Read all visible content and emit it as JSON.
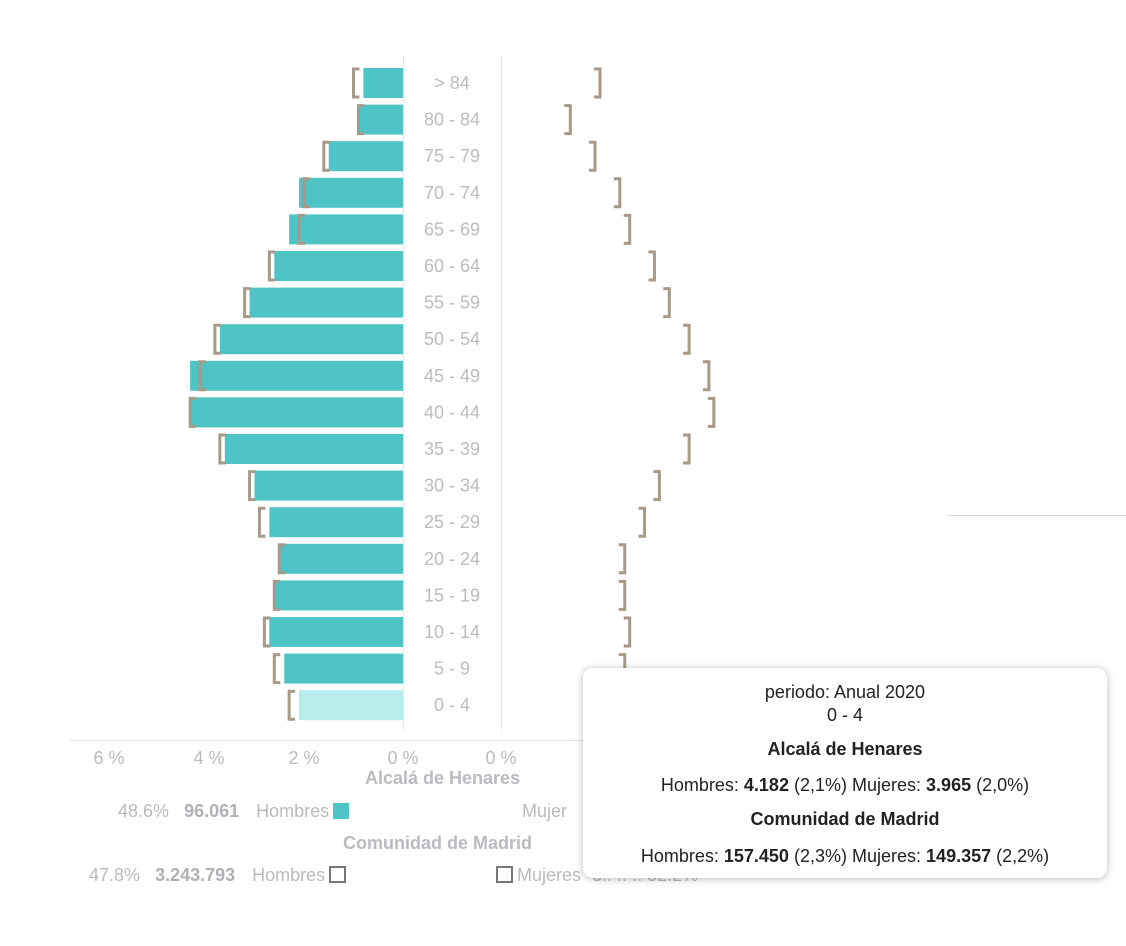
{
  "chart_data": {
    "type": "bar",
    "subtype": "population-pyramid",
    "categories": [
      "> 84",
      "80 - 84",
      "75 - 79",
      "70 - 74",
      "65 - 69",
      "60 - 64",
      "55 - 59",
      "50 - 54",
      "45 - 49",
      "40 - 44",
      "35 - 39",
      "30 - 34",
      "25 - 29",
      "20 - 24",
      "15 - 19",
      "10 - 14",
      "5 - 9",
      "0 - 4"
    ],
    "series": [
      {
        "name": "Alcalá de Henares Hombres",
        "unit": "%",
        "values": [
          0.8,
          0.9,
          1.5,
          2.1,
          2.3,
          2.6,
          3.1,
          3.7,
          4.3,
          4.3,
          3.6,
          3.0,
          2.7,
          2.5,
          2.6,
          2.7,
          2.4,
          2.1
        ]
      },
      {
        "name": "Comunidad de Madrid Hombres",
        "unit": "%",
        "values": [
          1.0,
          0.9,
          1.6,
          2.0,
          2.1,
          2.7,
          3.2,
          3.8,
          4.1,
          4.3,
          3.7,
          3.1,
          2.9,
          2.5,
          2.6,
          2.8,
          2.6,
          2.3
        ]
      },
      {
        "name": "Comunidad de Madrid Mujeres",
        "unit": "%",
        "values": [
          2.0,
          1.4,
          1.9,
          2.4,
          2.6,
          3.1,
          3.4,
          3.8,
          4.2,
          4.3,
          3.8,
          3.2,
          2.9,
          2.5,
          2.5,
          2.6,
          2.5,
          2.2
        ]
      }
    ],
    "x_axis_left": {
      "ticks": [
        "6 %",
        "4 %",
        "2 %",
        "0 %"
      ],
      "range": [
        6,
        0
      ]
    },
    "x_axis_right": {
      "ticks": [
        "0 %"
      ]
    },
    "highlighted_category": "0 - 4"
  },
  "legend": {
    "area1": {
      "title": "Alcalá de Henares",
      "men_pct": "48.6%",
      "men_count": "96.061",
      "men_label": "Hombres",
      "women_label": "Mujer"
    },
    "area2": {
      "title": "Comunidad de Madrid",
      "men_pct": "47.8%",
      "men_count": "3.243.793",
      "men_label": "Hombres",
      "women_label": "Mujeres",
      "women_tail": "3.. .. ..   52.2%"
    }
  },
  "tooltip": {
    "period": "periodo: Anual 2020",
    "age": "0 - 4",
    "area1_title": "Alcalá de Henares",
    "area1_men_label": "Hombres:",
    "area1_men_count": "4.182",
    "area1_men_pct": "(2,1%)",
    "area1_women_label": "Mujeres:",
    "area1_women_count": "3.965",
    "area1_women_pct": "(2,0%)",
    "area2_title": "Comunidad de Madrid",
    "area2_men_label": "Hombres:",
    "area2_men_count": "157.450",
    "area2_men_pct": "(2,3%)",
    "area2_women_label": "Mujeres:",
    "area2_women_count": "149.357",
    "area2_women_pct": "(2,2%)"
  },
  "colors": {
    "bar": "#4fc4c6",
    "bar_highlight": "#b6ecec",
    "marker": "#a89a88",
    "axis_text": "#b8bcbf"
  }
}
